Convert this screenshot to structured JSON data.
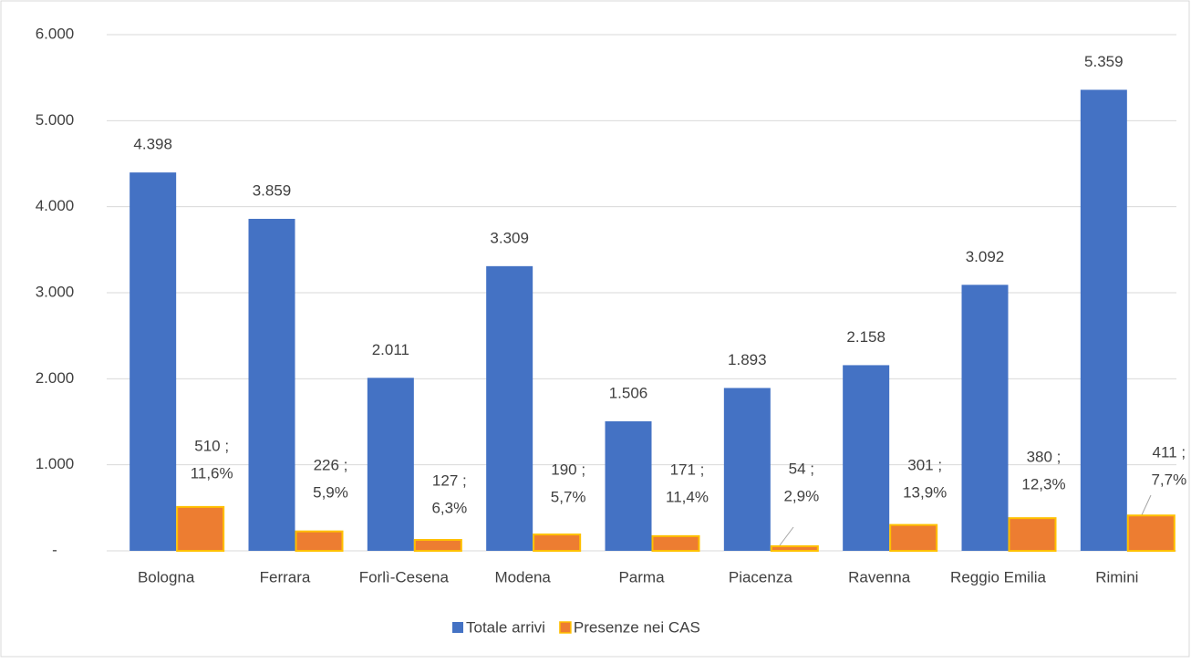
{
  "chart_data": {
    "type": "bar",
    "categories": [
      "Bologna",
      "Ferrara",
      "Forlì-Cesena",
      "Modena",
      "Parma",
      "Piacenza",
      "Ravenna",
      "Reggio Emilia",
      "Rimini"
    ],
    "series": [
      {
        "name": "Totale arrivi",
        "color": "#4472c4",
        "values": [
          4398,
          3859,
          2011,
          3309,
          1506,
          1893,
          2158,
          3092,
          5359
        ],
        "value_labels": [
          "4.398",
          "3.859",
          "2.011",
          "3.309",
          "1.506",
          "1.893",
          "2.158",
          "3.092",
          "5.359"
        ]
      },
      {
        "name": "Presenze nei CAS",
        "color": "#ed7d31",
        "edge_color": "#ffc000",
        "values": [
          510,
          226,
          127,
          190,
          171,
          54,
          301,
          380,
          411
        ],
        "value_labels": [
          [
            "510 ;",
            "11,6%"
          ],
          [
            "226 ;",
            "5,9%"
          ],
          [
            "127 ;",
            "6,3%"
          ],
          [
            "190 ;",
            "5,7%"
          ],
          [
            "171 ;",
            "11,4%"
          ],
          [
            "54 ;",
            "2,9%"
          ],
          [
            "301 ;",
            "13,9%"
          ],
          [
            "380 ;",
            "12,3%"
          ],
          [
            "411 ;",
            "7,7%"
          ]
        ]
      }
    ],
    "ylim": [
      0,
      6000
    ],
    "yticks": [
      {
        "value": 0,
        "label": "-"
      },
      {
        "value": 1000,
        "label": "1.000"
      },
      {
        "value": 2000,
        "label": "2.000"
      },
      {
        "value": 3000,
        "label": "3.000"
      },
      {
        "value": 4000,
        "label": "4.000"
      },
      {
        "value": 5000,
        "label": "5.000"
      },
      {
        "value": 6000,
        "label": "6.000"
      }
    ],
    "grid": true,
    "legend": "bottom"
  }
}
